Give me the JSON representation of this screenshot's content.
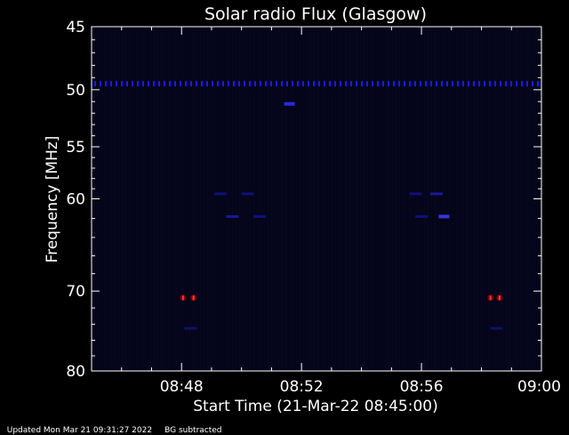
{
  "chart_data": {
    "type": "heatmap",
    "title": "Solar radio Flux (Glasgow)",
    "xlabel": "Start Time (21-Mar-22 08:45:00)",
    "ylabel": "Frequency [MHz]",
    "x_unit": "minutes after 08:45:00",
    "x_range": [
      0,
      15
    ],
    "y_range": [
      45,
      80
    ],
    "y_scale": "log",
    "y_inverted": true,
    "x_ticks": [
      {
        "value": 3,
        "label": "08:48"
      },
      {
        "value": 7,
        "label": "08:52"
      },
      {
        "value": 11,
        "label": "08:56"
      },
      {
        "value": 15,
        "label": "09:00"
      }
    ],
    "y_ticks": [
      {
        "value": 45,
        "label": "45"
      },
      {
        "value": 50,
        "label": "50"
      },
      {
        "value": 55,
        "label": "55"
      },
      {
        "value": 60,
        "label": "60"
      },
      {
        "value": 70,
        "label": "70"
      },
      {
        "value": 80,
        "label": "80"
      }
    ],
    "features": [
      {
        "type": "band",
        "freq": 49.5,
        "x_start": 0,
        "x_end": 15,
        "intensity": "medium",
        "color": "#1a1aff"
      },
      {
        "type": "spot",
        "freq": 51.2,
        "x": 6.6,
        "intensity": "medium",
        "color": "#3030ff"
      },
      {
        "type": "spot",
        "freq": 59.5,
        "x": 4.3,
        "intensity": "low",
        "color": "#1a1acc"
      },
      {
        "type": "spot",
        "freq": 59.5,
        "x": 5.2,
        "intensity": "low",
        "color": "#1a1acc"
      },
      {
        "type": "spot",
        "freq": 59.5,
        "x": 10.8,
        "intensity": "low",
        "color": "#1a1acc"
      },
      {
        "type": "spot",
        "freq": 59.5,
        "x": 11.5,
        "intensity": "low",
        "color": "#2a2aff"
      },
      {
        "type": "spot",
        "freq": 61.8,
        "x": 4.7,
        "intensity": "low",
        "color": "#2a2aff"
      },
      {
        "type": "spot",
        "freq": 61.8,
        "x": 5.6,
        "intensity": "low",
        "color": "#1a1acc"
      },
      {
        "type": "spot",
        "freq": 61.8,
        "x": 11.0,
        "intensity": "low",
        "color": "#1a1acc"
      },
      {
        "type": "spot",
        "freq": 61.8,
        "x": 11.75,
        "intensity": "medium",
        "color": "#4040ff"
      },
      {
        "type": "spot",
        "freq": 70.8,
        "x": 3.05,
        "intensity": "high",
        "color": "#ff3030"
      },
      {
        "type": "spot",
        "freq": 70.8,
        "x": 3.4,
        "intensity": "high",
        "color": "#ff4040"
      },
      {
        "type": "spot",
        "freq": 70.8,
        "x": 13.3,
        "intensity": "high",
        "color": "#ff3030"
      },
      {
        "type": "spot",
        "freq": 70.8,
        "x": 13.6,
        "intensity": "high",
        "color": "#ff4040"
      },
      {
        "type": "spot",
        "freq": 74.5,
        "x": 3.3,
        "intensity": "low",
        "color": "#1a1aaa"
      },
      {
        "type": "spot",
        "freq": 74.5,
        "x": 13.5,
        "intensity": "low",
        "color": "#1a1aaa"
      }
    ],
    "background_color": "#05051a",
    "axis_color": "#ffffff",
    "grid": false
  },
  "footer": {
    "updated": "Updated Mon Mar 21 09:31:27 2022",
    "note": "BG subtracted"
  }
}
